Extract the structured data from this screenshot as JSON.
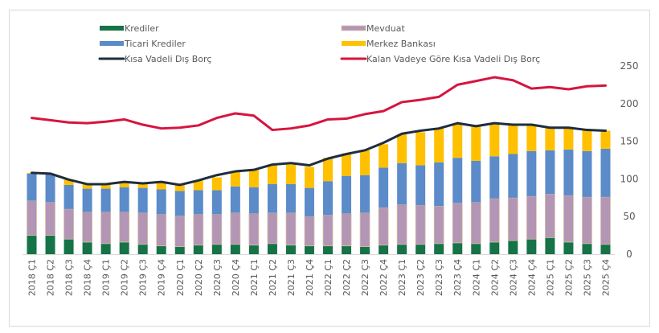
{
  "chart_data": {
    "type": "bar",
    "stacked": true,
    "title": "",
    "xlabel": "",
    "ylabel": "",
    "ylim": [
      0,
      250
    ],
    "yticks": [
      0,
      50,
      100,
      150,
      200,
      250
    ],
    "y_axis_side": "right",
    "grid": false,
    "legend_position": "top",
    "categories": [
      "2018 Ç1",
      "2018 Ç2",
      "2018 Ç3",
      "2018 Ç4",
      "2019 Ç1",
      "2019 Ç2",
      "2019 Ç3",
      "2019 Ç4",
      "2020 Ç1",
      "2020 Ç2",
      "2020 Ç3",
      "2020 Ç4",
      "2021 Ç1",
      "2021 Ç2",
      "2021 Ç3",
      "2021 Ç4",
      "2022 Ç1",
      "2022 Ç2",
      "2022 Ç3",
      "2022 Ç4",
      "2023 Ç1",
      "2023 Ç2",
      "2023 Ç3",
      "2023 Ç4",
      "2024 Ç1",
      "2024 Ç2",
      "2024 Ç3",
      "2024 Ç4",
      "2025 Ç1",
      "2025 Ç2",
      "2025 Ç3",
      "2025 Ç4"
    ],
    "series": [
      {
        "name": "Krediler",
        "kind": "bar",
        "color": "#157347",
        "values": [
          25,
          25,
          20,
          16,
          14,
          16,
          13,
          11,
          10,
          12,
          13,
          13,
          12,
          14,
          12,
          11,
          11,
          11,
          10,
          12,
          13,
          13,
          14,
          15,
          14,
          16,
          18,
          20,
          22,
          16,
          14,
          13
        ]
      },
      {
        "name": "Mevduat",
        "kind": "bar",
        "color": "#b395b5",
        "values": [
          46,
          44,
          40,
          40,
          42,
          40,
          42,
          42,
          41,
          41,
          40,
          42,
          42,
          41,
          43,
          39,
          41,
          43,
          45,
          50,
          53,
          52,
          50,
          53,
          55,
          58,
          57,
          57,
          58,
          62,
          62,
          63
        ]
      },
      {
        "name": "Ticari Krediler",
        "kind": "bar",
        "color": "#5b8bc9",
        "values": [
          36,
          37,
          32,
          31,
          31,
          33,
          33,
          33,
          33,
          32,
          32,
          35,
          35,
          38,
          38,
          38,
          45,
          50,
          50,
          53,
          55,
          53,
          58,
          60,
          55,
          56,
          58,
          60,
          58,
          61,
          61,
          64
        ]
      },
      {
        "name": "Merkez Bankası",
        "kind": "bar",
        "color": "#ffc000",
        "values": [
          1,
          1,
          7,
          6,
          6,
          6,
          6,
          9,
          8,
          13,
          17,
          19,
          23,
          26,
          26,
          28,
          31,
          30,
          33,
          31,
          38,
          44,
          45,
          45,
          48,
          44,
          40,
          35,
          30,
          30,
          27,
          24
        ]
      },
      {
        "name": "Kısa Vadeli Dış Borç",
        "kind": "line",
        "color": "#1f2d3d",
        "values": [
          108,
          107,
          99,
          93,
          93,
          96,
          94,
          96,
          92,
          98,
          105,
          110,
          112,
          119,
          121,
          118,
          127,
          133,
          138,
          148,
          160,
          164,
          167,
          174,
          170,
          174,
          172,
          172,
          168,
          168,
          165,
          164
        ]
      },
      {
        "name": "Kalan Vadeye Göre Kısa Vadeli Dış Borç",
        "kind": "line",
        "color": "#d6153e",
        "values": [
          181,
          178,
          175,
          174,
          176,
          179,
          172,
          167,
          168,
          171,
          181,
          187,
          184,
          165,
          167,
          171,
          179,
          180,
          186,
          190,
          202,
          205,
          209,
          225,
          230,
          235,
          231,
          220,
          222,
          219,
          223,
          224
        ]
      }
    ]
  }
}
